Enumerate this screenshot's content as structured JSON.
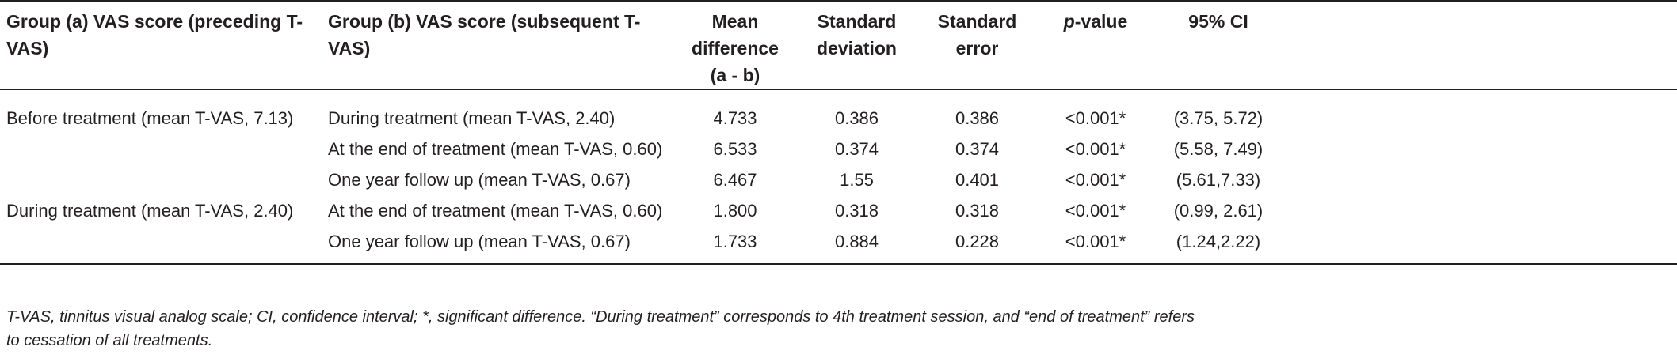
{
  "table": {
    "headers": {
      "group_a": "Group (a) VAS score (preceding T-VAS)",
      "group_b": "Group (b) VAS score (subsequent T-VAS)",
      "mean_diff_l1": "Mean difference",
      "mean_diff_l2": "(a - b)",
      "sd_l1": "Standard",
      "sd_l2": "deviation",
      "se_l1": "Standard",
      "se_l2": "error",
      "p_italic": "p",
      "p_rest": "-value",
      "ci": "95% CI"
    },
    "rows": [
      {
        "group_a": "Before treatment (mean T-VAS, 7.13)",
        "group_b": "During treatment (mean T-VAS, 2.40)",
        "mean_diff": "4.733",
        "sd": "0.386",
        "se": "0.386",
        "p": "<0.001*",
        "ci": "(3.75, 5.72)"
      },
      {
        "group_a": "",
        "group_b": "At the end of treatment (mean T-VAS, 0.60)",
        "mean_diff": "6.533",
        "sd": "0.374",
        "se": "0.374",
        "p": "<0.001*",
        "ci": "(5.58, 7.49)"
      },
      {
        "group_a": "",
        "group_b": "One year follow up (mean T-VAS, 0.67)",
        "mean_diff": "6.467",
        "sd": "1.55",
        "se": "0.401",
        "p": "<0.001*",
        "ci": "(5.61,7.33)"
      },
      {
        "group_a": "During treatment (mean T-VAS, 2.40)",
        "group_b": "At the end of treatment (mean T-VAS, 0.60)",
        "mean_diff": "1.800",
        "sd": "0.318",
        "se": "0.318",
        "p": "<0.001*",
        "ci": "(0.99, 2.61)"
      },
      {
        "group_a": "",
        "group_b": "One year follow up (mean T-VAS, 0.67)",
        "mean_diff": "1.733",
        "sd": "0.884",
        "se": "0.228",
        "p": "<0.001*",
        "ci": "(1.24,2.22)"
      }
    ]
  },
  "footnote": {
    "line1": "T-VAS, tinnitus visual analog scale; CI, confidence interval; *, significant difference. “During treatment” corresponds to 4th treatment session, and “end of treatment” refers",
    "line2": "to cessation of all treatments."
  },
  "colors": {
    "text": "#231f20",
    "rule": "#231f20",
    "background": "#ffffff"
  }
}
